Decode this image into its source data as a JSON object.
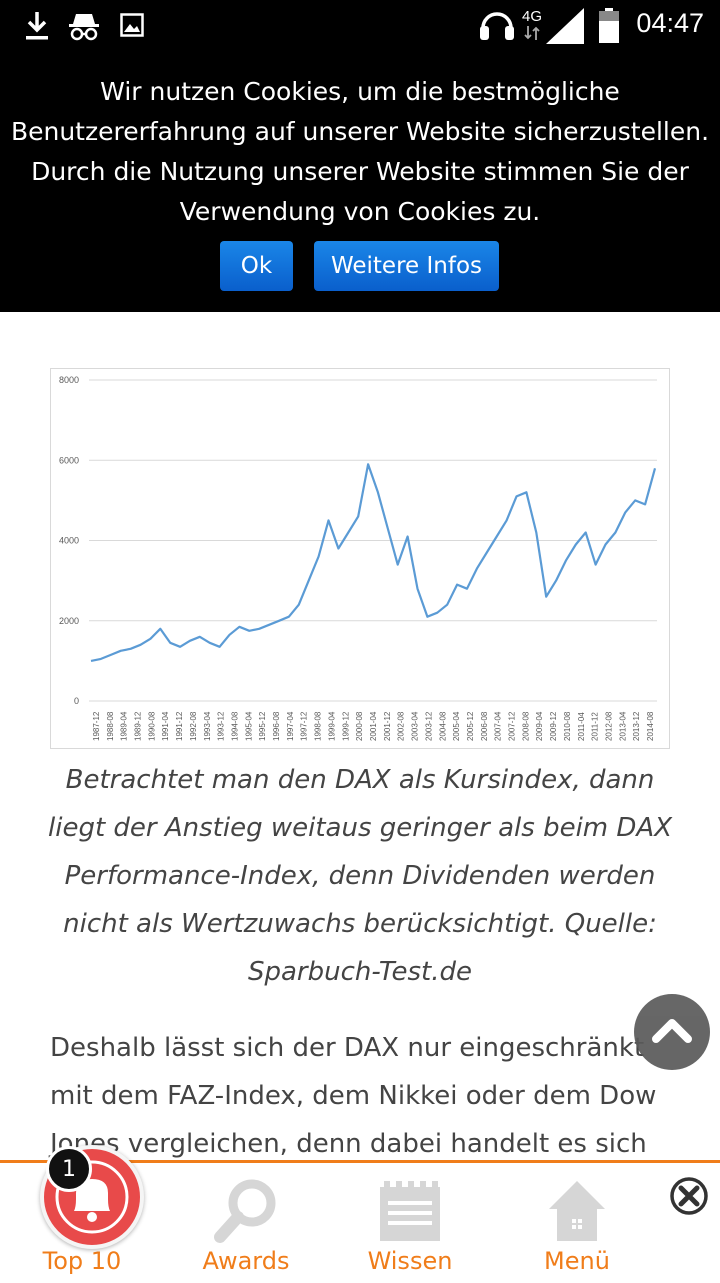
{
  "status_bar": {
    "time": "04:47",
    "network": "4G",
    "icons": [
      "download-icon",
      "incognito-icon",
      "image-icon",
      "headset-icon",
      "signal-icon",
      "battery-icon"
    ]
  },
  "cookie_banner": {
    "lines": [
      "Wir nutzen Cookies, um die bestmögliche",
      "Benutzererfahrung auf unserer Website sicherzustellen.",
      "Durch die Nutzung unserer Website stimmen Sie der",
      "Verwendung von Cookies zu."
    ],
    "ok_label": "Ok",
    "info_label": "Weitere Infos"
  },
  "chart_data": {
    "type": "line",
    "title": "",
    "xlabel": "",
    "ylabel": "",
    "ylim": [
      0,
      8000
    ],
    "yticks": [
      "0",
      "2000",
      "4000",
      "6000",
      "8000"
    ],
    "grid": true,
    "color": "#5b9bd5",
    "x_labels": [
      "1987-12",
      "1988-08",
      "1989-04",
      "1989-12",
      "1990-08",
      "1991-04",
      "1991-12",
      "1992-08",
      "1993-04",
      "1993-12",
      "1994-08",
      "1995-04",
      "1995-12",
      "1996-08",
      "1997-04",
      "1997-12",
      "1998-08",
      "1999-04",
      "1999-12",
      "2000-08",
      "2001-04",
      "2001-12",
      "2002-08",
      "2003-04",
      "2003-12",
      "2004-08",
      "2005-04",
      "2005-12",
      "2006-08",
      "2007-04",
      "2007-12",
      "2008-08",
      "2009-04",
      "2009-12",
      "2010-08",
      "2011-04",
      "2011-12",
      "2012-08",
      "2013-04",
      "2013-12",
      "2014-08"
    ],
    "series": [
      {
        "values": [
          1000,
          1050,
          1150,
          1250,
          1300,
          1400,
          1550,
          1800,
          1450,
          1350,
          1500,
          1600,
          1450,
          1350,
          1650,
          1850,
          1750,
          1800,
          1900,
          2000,
          2100,
          2400,
          3000,
          3600,
          4500,
          3800,
          4200,
          4600,
          5900,
          5200,
          4300,
          3400,
          4100,
          2800,
          2100,
          2200,
          2400,
          2900,
          2800,
          3300,
          3700,
          4100,
          4500,
          5100,
          5200,
          4200,
          2600,
          3000,
          3500,
          3900,
          4200,
          3400,
          3900,
          4200,
          4700,
          5000,
          4900,
          5800
        ]
      }
    ]
  },
  "caption": "Betrachtet man den DAX als Kursindex, dann liegt der Anstieg weitaus geringer als beim DAX Performance-Index, denn Dividenden werden nicht als Wertzuwachs berücksichtigt. Quelle: Sparbuch-Test.de",
  "caption_lines": [
    "Betrachtet man den DAX als Kursindex, dann",
    "liegt der Anstieg weitaus geringer als beim DAX",
    "Performance-Index, denn Dividenden werden",
    "nicht als Wertzuwachs berücksichtigt. Quelle:",
    "Sparbuch-Test.de"
  ],
  "body_lines": [
    "Deshalb lässt sich der DAX nur eingeschränkt",
    "mit dem FAZ-Index, dem Nikkei oder dem Dow",
    "Jones vergleichen, denn dabei handelt es sich"
  ],
  "bottom_nav": {
    "badge_count": "1",
    "items": [
      {
        "label": "Top 10",
        "icon": "bell-icon"
      },
      {
        "label": "Awards",
        "icon": "magnifier-icon"
      },
      {
        "label": "Wissen",
        "icon": "notepad-icon"
      },
      {
        "label": "Menü",
        "icon": "home-icon"
      }
    ]
  },
  "colors": {
    "accent": "#f07d1a",
    "button": "#0a6fd6",
    "bell": "#e84a4a",
    "chart_line": "#5b9bd5"
  }
}
